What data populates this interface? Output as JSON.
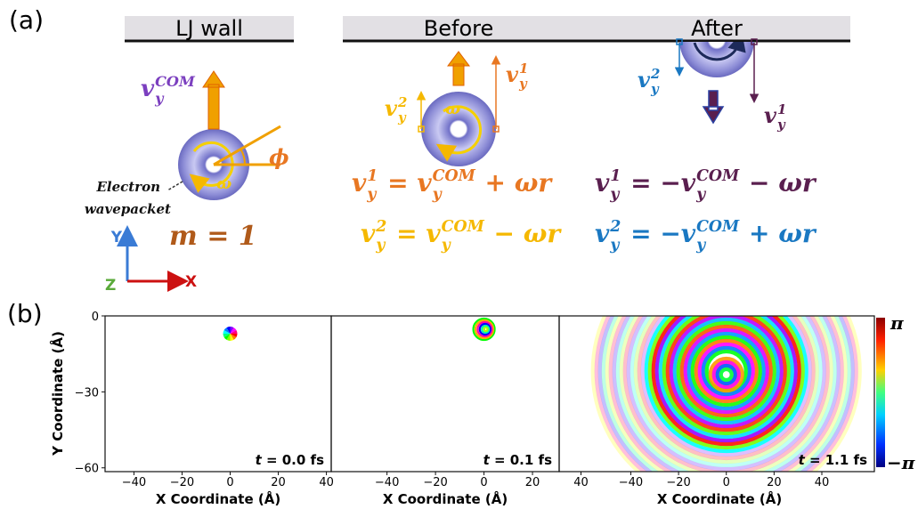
{
  "panel_a": {
    "label": "(a)",
    "walls": [
      "LJ wall",
      "Before",
      "After"
    ],
    "com_label": {
      "base": "v",
      "sub": "y",
      "sup": "COM"
    },
    "omega": "ω",
    "phi": "ϕ",
    "electron_label": [
      "Electron",
      "wavepacket"
    ],
    "m_label": "m = 1",
    "axes": {
      "y": "Y",
      "x": "X",
      "z": "Z"
    },
    "before": {
      "v1": {
        "base": "v",
        "sub": "y",
        "sup": "1"
      },
      "v2": {
        "base": "v",
        "sub": "y",
        "sup": "2"
      },
      "omega": "ω"
    },
    "after": {
      "v1": {
        "base": "v",
        "sub": "y",
        "sup": "1"
      },
      "v2": {
        "base": "v",
        "sub": "y",
        "sup": "2"
      }
    },
    "equations": [
      [
        {
          "base": "v",
          "sub": "y",
          "sup": "1"
        },
        " = ",
        {
          "base": "v",
          "sub": "y",
          "sup": "COM"
        },
        " + ωr"
      ],
      [
        {
          "base": "v",
          "sub": "y",
          "sup": "2"
        },
        " = ",
        {
          "base": "v",
          "sub": "y",
          "sup": "COM"
        },
        " − ωr"
      ],
      [
        {
          "base": "v",
          "sub": "y",
          "sup": "1"
        },
        " = −",
        {
          "base": "v",
          "sub": "y",
          "sup": "COM"
        },
        " − ωr"
      ],
      [
        {
          "base": "v",
          "sub": "y",
          "sup": "2"
        },
        " = −",
        {
          "base": "v",
          "sub": "y",
          "sup": "COM"
        },
        " + ωr"
      ]
    ]
  },
  "panel_b": {
    "label": "(b)",
    "ylabel": "Y Coordinate (Å)",
    "ylim": [
      -61.5,
      0
    ],
    "yticks": [
      0,
      {
        "value": -30,
        "label": "−30"
      },
      {
        "value": -60,
        "label": "−60"
      }
    ],
    "plots": [
      {
        "xlim": [
          -52,
          42
        ],
        "xlabel": "X Coordinate (Å)",
        "time": {
          "var": "t",
          "rest": " = 0.0 fs"
        },
        "xticks": [
          {
            "value": -40,
            "label": "−40"
          },
          {
            "value": -20,
            "label": "−20"
          },
          0,
          20,
          40
        ]
      },
      {
        "xlim": [
          -63,
          31
        ],
        "xlabel": "X Coordinate (Å)",
        "time": {
          "var": "t",
          "rest": " = 0.1 fs"
        },
        "xticks": [
          {
            "value": -40,
            "label": "−40"
          },
          {
            "value": -20,
            "label": "−20"
          },
          0,
          20,
          40
        ]
      },
      {
        "xlim": [
          -70,
          62
        ],
        "xlabel": "X Coordinate (Å)",
        "time": {
          "var": "t",
          "rest": " = 1.1 fs"
        },
        "xticks": [
          {
            "value": -40,
            "label": "−40"
          },
          {
            "value": -20,
            "label": "−20"
          },
          0,
          20,
          40
        ]
      }
    ],
    "colorbar": {
      "max": "π",
      "min": "−π"
    }
  }
}
